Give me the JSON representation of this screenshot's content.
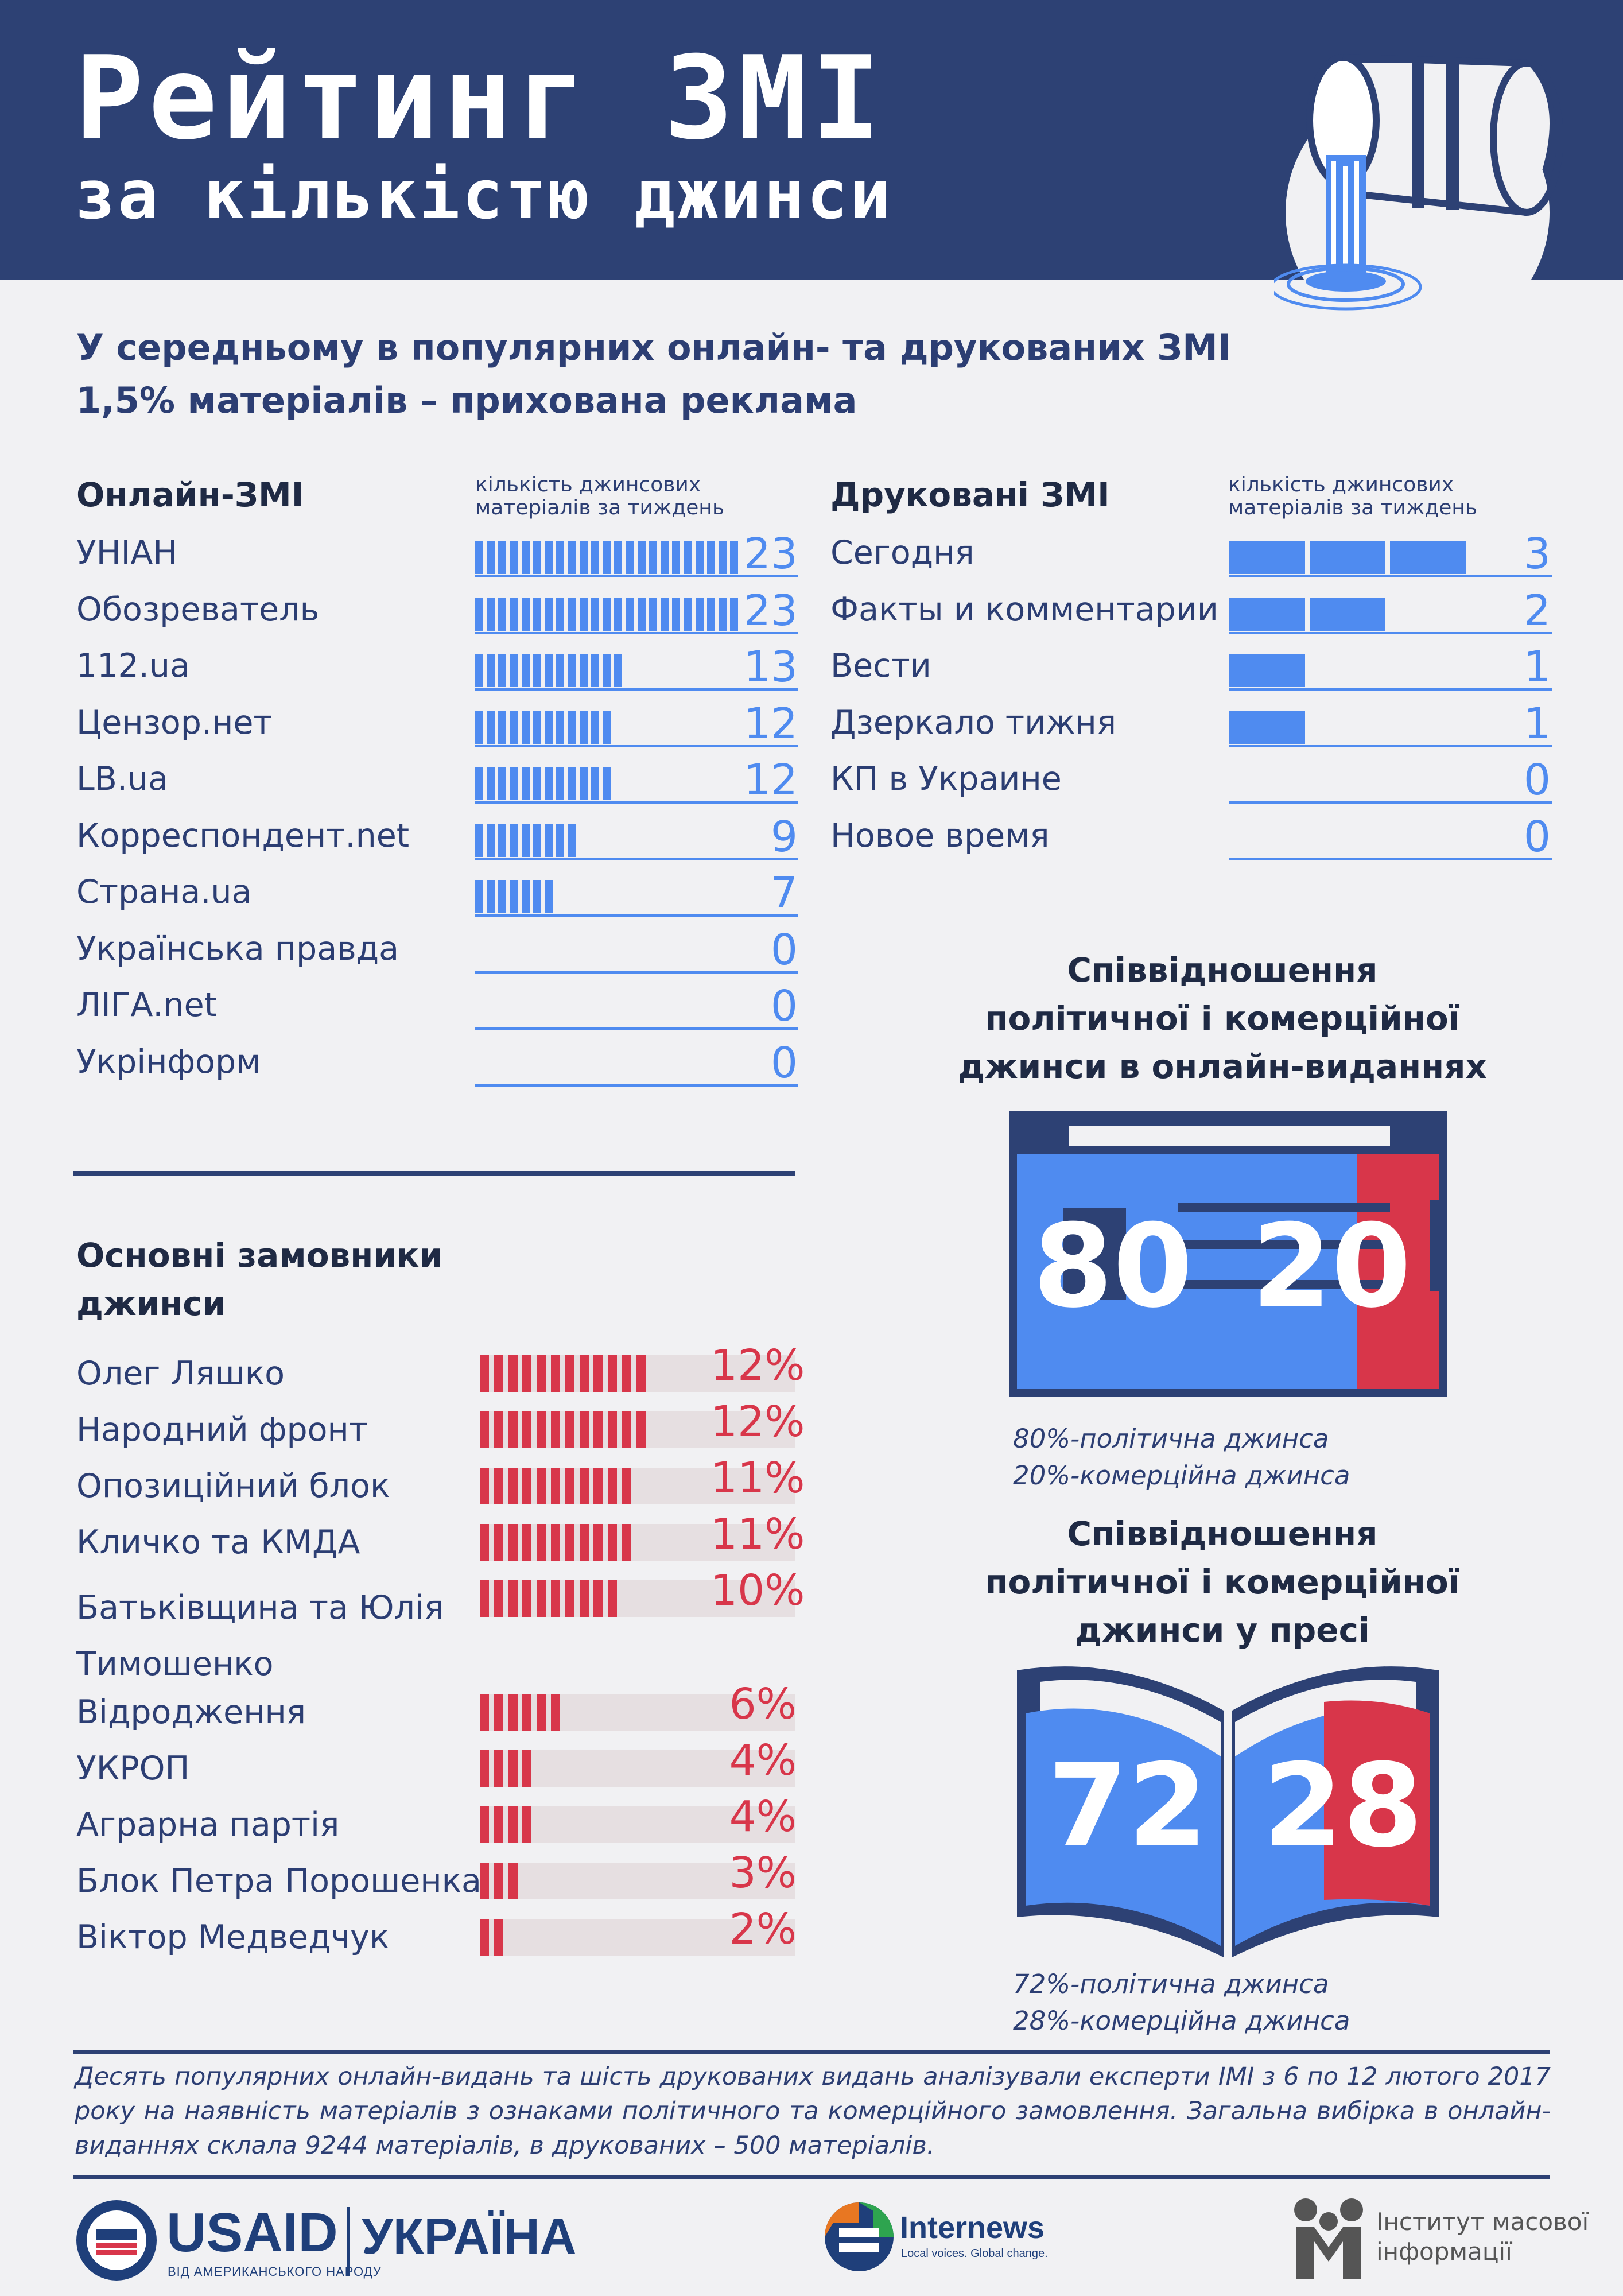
{
  "header": {
    "title_line1": "Рейтинг ЗМІ",
    "title_line2": "за кількістю джинси"
  },
  "subtitle": {
    "line1": "У середньому в популярних онлайн- та друкованих ЗМІ",
    "line2": "1,5% матеріалів – прихована реклама"
  },
  "online": {
    "heading": "Онлайн-ЗМІ",
    "note_line1": "кількість джинсових",
    "note_line2": "матеріалів за тиждень"
  },
  "print": {
    "heading": "Друковані ЗМІ",
    "note_line1": "кількість джинсових",
    "note_line2": "матеріалів за тиждень"
  },
  "customers": {
    "heading_line1": "Основні замовники",
    "heading_line2": "джинси"
  },
  "online_ratio": {
    "title_line1": "Співвідношення",
    "title_line2": "політичної і комерційної",
    "title_line3": "джинси в онлайн-виданнях",
    "political": "80",
    "commercial": "20",
    "legend_line1": "80%-політична джинса",
    "legend_line2": "20%-комерційна джинса"
  },
  "press_ratio": {
    "title_line1": "Співвідношення",
    "title_line2": "політичної і комерційної",
    "title_line3": "джинси у пресі",
    "political": "72",
    "commercial": "28",
    "legend_line1": "72%-політична джинса",
    "legend_line2": "28%-комерційна джинса"
  },
  "footnote": "Десять популярних онлайн-видань та шість друкованих видань аналізували експерти ІМІ з 6 по 12 лютого 2017 року на наявність матеріалів з ознаками політичного та комерційного замовлення. Загальна вибірка в онлайн-виданнях склала 9244 матеріалів, в друкованих – 500 матеріалів.",
  "logos": {
    "usaid": "USAID",
    "usaid_sub": "ВІД АМЕРИКАНСЬКОГО НАРОДУ",
    "ukraine": "УКРАЇНА",
    "internews": "Internews",
    "internews_sub": "Local voices. Global change.",
    "imi_line1": "Інститут масової",
    "imi_line2": "інформації"
  },
  "colors": {
    "navy": "#2d4174",
    "blue": "#4f8bf0",
    "red": "#d8364a",
    "background": "#f1f1f3"
  },
  "chart_data": [
    {
      "type": "bar",
      "title": "Онлайн-ЗМІ",
      "ylabel": "кількість джинсових матеріалів за тиждень",
      "categories": [
        "УНІАН",
        "Обозреватель",
        "112.ua",
        "Цензор.нет",
        "LB.ua",
        "Корреспондент.net",
        "Страна.ua",
        "Українська правда",
        "ЛІГА.net",
        "Укрінформ"
      ],
      "values": [
        23,
        23,
        13,
        12,
        12,
        9,
        7,
        0,
        0,
        0
      ],
      "labels": [
        "23",
        "23",
        "13",
        "12",
        "12",
        "9",
        "7",
        "0",
        "0",
        "0"
      ],
      "orientation": "horizontal",
      "color": "#4f8bf0"
    },
    {
      "type": "bar",
      "title": "Друковані ЗМІ",
      "ylabel": "кількість джинсових матеріалів за тиждень",
      "categories": [
        "Сегодня",
        "Факты и комментарии",
        "Вести",
        "Дзеркало тижня",
        "КП в Украине",
        "Новое время"
      ],
      "values": [
        3,
        2,
        1,
        1,
        0,
        0
      ],
      "labels": [
        "3",
        "2",
        "1",
        "1",
        "0",
        "0"
      ],
      "orientation": "horizontal",
      "color": "#4f8bf0"
    },
    {
      "type": "bar",
      "title": "Основні замовники джинси",
      "categories": [
        "Олег Ляшко",
        "Народний фронт",
        "Опозиційний блок",
        "Кличко та КМДА",
        "Батьківщина та Юлія Тимошенко",
        "Відродження",
        "УКРОП",
        "Аграрна партія",
        "Блок Петра Порошенка",
        "Віктор Медведчук"
      ],
      "values": [
        12,
        12,
        11,
        11,
        10,
        6,
        4,
        4,
        3,
        2
      ],
      "labels": [
        "12%",
        "12%",
        "11%",
        "11%",
        "10%",
        "6%",
        "4%",
        "4%",
        "3%",
        "2%"
      ],
      "unit": "%",
      "orientation": "horizontal",
      "color": "#d8364a"
    }
  ]
}
